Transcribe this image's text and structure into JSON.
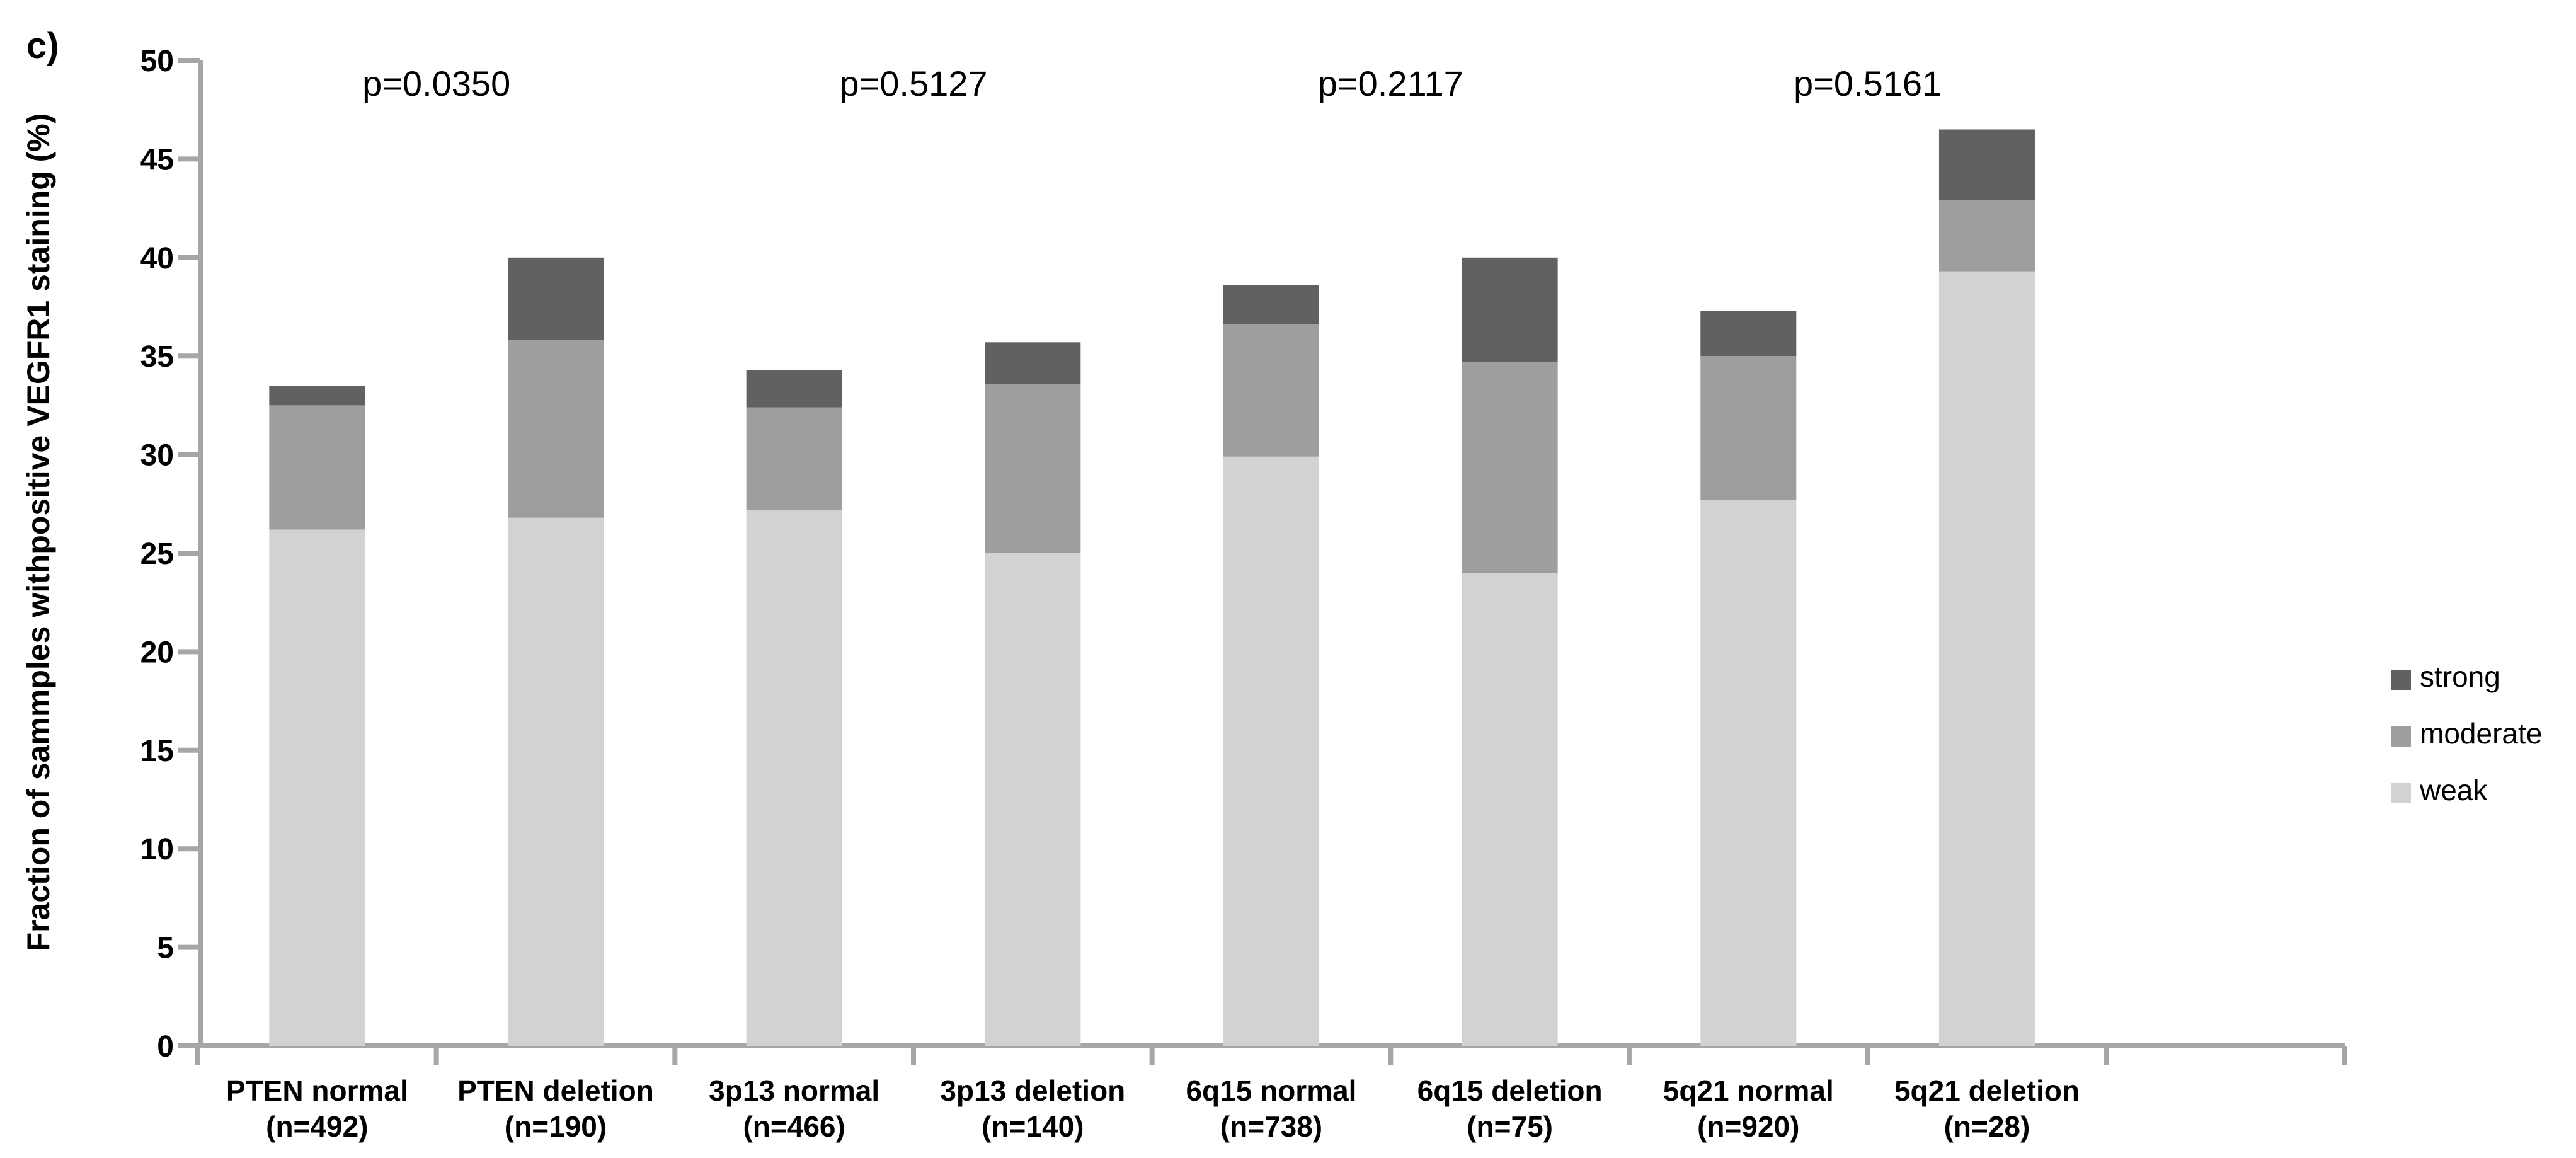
{
  "panel_label": "c)",
  "chart_data": {
    "type": "bar",
    "stacked": true,
    "title": "",
    "xlabel": "",
    "ylabel": "Fraction of sammples withpositive VEGFR1 staining (%)",
    "ylim": [
      0,
      50
    ],
    "yticks": [
      0,
      5,
      10,
      15,
      20,
      25,
      30,
      35,
      40,
      45,
      50
    ],
    "grid": false,
    "axis_color": "#a6a6a6",
    "categories": [
      {
        "label": "PTEN normal",
        "n": "(n=492)"
      },
      {
        "label": "PTEN deletion",
        "n": "(n=190)"
      },
      {
        "label": "3p13 normal",
        "n": "(n=466)"
      },
      {
        "label": "3p13 deletion",
        "n": "(n=140)"
      },
      {
        "label": "6q15 normal",
        "n": "(n=738)"
      },
      {
        "label": "6q15 deletion",
        "n": "(n=75)"
      },
      {
        "label": "5q21 normal",
        "n": "(n=920)"
      },
      {
        "label": "5q21 deletion",
        "n": "(n=28)"
      }
    ],
    "series": [
      {
        "name": "weak",
        "color": "#d2d2d2",
        "values": [
          26.2,
          26.8,
          27.2,
          25.0,
          29.9,
          24.0,
          27.7,
          39.3
        ]
      },
      {
        "name": "moderate",
        "color": "#9e9e9e",
        "values": [
          6.3,
          9.0,
          5.2,
          8.6,
          6.7,
          10.7,
          7.3,
          3.6
        ]
      },
      {
        "name": "strong",
        "color": "#616161",
        "values": [
          1.0,
          4.2,
          1.9,
          2.1,
          2.0,
          5.3,
          2.3,
          3.6
        ]
      }
    ],
    "annotations": [
      {
        "text": "p=0.0350",
        "pair": [
          0,
          1
        ]
      },
      {
        "text": "p=0.5127",
        "pair": [
          2,
          3
        ]
      },
      {
        "text": "p=0.2117",
        "pair": [
          4,
          5
        ]
      },
      {
        "text": "p=0.5161",
        "pair": [
          6,
          7
        ]
      }
    ],
    "legend": {
      "position": "right",
      "entries": [
        "strong",
        "moderate",
        "weak"
      ]
    }
  }
}
